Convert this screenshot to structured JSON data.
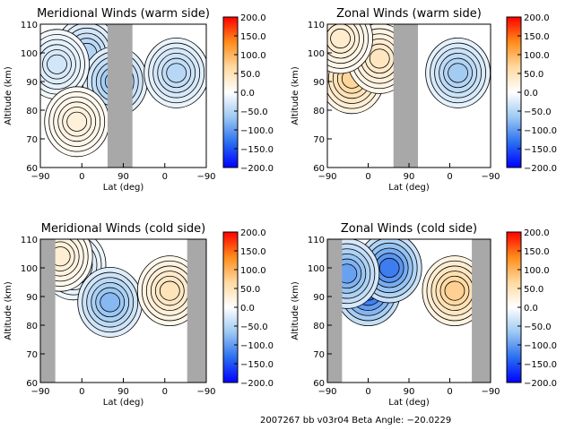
{
  "colorbar_ticks": [
    "200.0",
    "150.0",
    "100.0",
    "50.0",
    "0.0",
    "−50.0",
    "−100.0",
    "−150.0",
    "−200.0"
  ],
  "colorbar_stops": [
    "#ff0000",
    "#ff8c1a",
    "#ffd9a0",
    "#ffffff",
    "#9cc8f2",
    "#2a6ff0",
    "#0000ff"
  ],
  "colors": {
    "gap": "#a8a8a8",
    "contour": "#000000",
    "frame": "#000000"
  },
  "footer": {
    "text": "2007267 bb v03r04  Beta Angle: −20.0229"
  },
  "chart_data": [
    {
      "type": "heatmap",
      "title": "Meridional Winds (warm side)",
      "xlabel": "Lat (deg)",
      "ylabel": "Altitude (km)",
      "xticks": [
        "−90",
        "0",
        "90",
        "0",
        "−90"
      ],
      "yticks": [
        "60",
        "70",
        "80",
        "90",
        "100",
        "110"
      ],
      "ylim": [
        60,
        110
      ],
      "zlim": [
        -200,
        200
      ],
      "blobs": [
        {
          "x": 0.28,
          "y": 100,
          "value": -60
        },
        {
          "x": 0.45,
          "y": 90,
          "value": -80
        },
        {
          "x": 0.1,
          "y": 96,
          "value": -35
        },
        {
          "x": 0.22,
          "y": 76,
          "value": 30
        },
        {
          "x": 0.82,
          "y": 93,
          "value": -55
        }
      ]
    },
    {
      "type": "heatmap",
      "title": "Zonal Winds (warm side)",
      "xlabel": "Lat (deg)",
      "ylabel": "Altitude (km)",
      "xticks": [
        "−90",
        "0",
        "90",
        "0",
        "−90"
      ],
      "yticks": [
        "60",
        "70",
        "80",
        "90",
        "100",
        "110"
      ],
      "ylim": [
        60,
        110
      ],
      "zlim": [
        -200,
        200
      ],
      "blobs": [
        {
          "x": 0.15,
          "y": 91,
          "value": 80
        },
        {
          "x": 0.32,
          "y": 98,
          "value": 50
        },
        {
          "x": 0.08,
          "y": 105,
          "value": 40
        },
        {
          "x": 0.8,
          "y": 93,
          "value": -70
        }
      ]
    },
    {
      "type": "heatmap",
      "title": "Meridional Winds (cold side)",
      "xlabel": "Lat (deg)",
      "ylabel": "Altitude (km)",
      "xticks": [
        "−90",
        "0",
        "90",
        "0",
        "−90"
      ],
      "yticks": [
        "60",
        "70",
        "80",
        "90",
        "100",
        "110"
      ],
      "ylim": [
        60,
        110
      ],
      "zlim": [
        -200,
        200
      ],
      "blobs": [
        {
          "x": 0.2,
          "y": 101,
          "value": -40
        },
        {
          "x": 0.42,
          "y": 88,
          "value": -90
        },
        {
          "x": 0.12,
          "y": 104,
          "value": 35
        },
        {
          "x": 0.78,
          "y": 92,
          "value": 55
        }
      ]
    },
    {
      "type": "heatmap",
      "title": "Zonal Winds (cold side)",
      "xlabel": "Lat (deg)",
      "ylabel": "Altitude (km)",
      "xticks": [
        "−90",
        "0",
        "90",
        "0",
        "−90"
      ],
      "yticks": [
        "60",
        "70",
        "80",
        "90",
        "100",
        "110"
      ],
      "ylim": [
        60,
        110
      ],
      "zlim": [
        -200,
        200
      ],
      "blobs": [
        {
          "x": 0.25,
          "y": 92,
          "value": -160
        },
        {
          "x": 0.38,
          "y": 100,
          "value": -140
        },
        {
          "x": 0.12,
          "y": 98,
          "value": -110
        },
        {
          "x": 0.78,
          "y": 92,
          "value": 85
        }
      ]
    }
  ]
}
